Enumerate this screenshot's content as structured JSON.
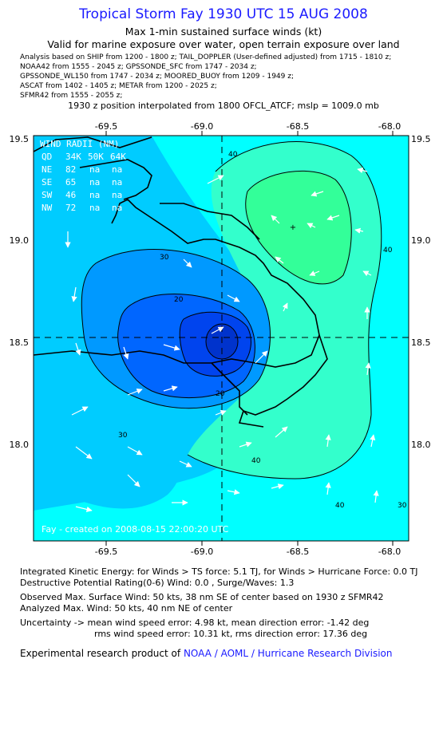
{
  "header": {
    "title": "Tropical Storm Fay 1930 UTC 15 AUG 2008",
    "subtitle1": "Max 1-min sustained surface winds (kt)",
    "subtitle2": "Valid for marine exposure over water, open terrain exposure over land"
  },
  "analysis": {
    "lines": [
      "Analysis based on   SHIP from 1200 - 1800 z;  TAIL_DOPPLER (User-defined adjusted) from 1715 - 1810 z;",
      "NOAA42 from 1555 - 2045 z;  GPSSONDE_SFC from 1747 - 2034 z;",
      "GPSSONDE_WL150 from 1747 - 2034 z;  MOORED_BUOY from 1209 - 1949 z;",
      "ASCAT from 1402 - 1405 z;  METAR from 1200 - 2025 z;",
      "SFMR42 from 1555 - 2055 z;"
    ],
    "interp": "1930 z position interpolated from 1800 OFCL_ATCF; mslp = 1009.0 mb"
  },
  "map": {
    "lon_ticks": [
      "-69.5",
      "-69.0",
      "-68.5",
      "-68.0"
    ],
    "lat_ticks": [
      "19.5",
      "19.0",
      "18.5",
      "18.0"
    ],
    "lon_range": [
      -69.85,
      -67.92
    ],
    "lat_range": [
      17.53,
      19.53
    ],
    "center": {
      "lon": -68.92,
      "lat": 18.52
    },
    "contour_labels": [
      "40",
      "40",
      "30",
      "20",
      "20",
      "30",
      "40",
      "30",
      "40"
    ],
    "colors": {
      "water_light": "#00ffff",
      "mid": "#00ccff",
      "deep": "#0066ff",
      "core": "#0033cc",
      "max": "#33ff99"
    },
    "wind_radii": {
      "title": "WIND RADII (NM)",
      "header": [
        "QD",
        "34K",
        "50K",
        "64K"
      ],
      "rows": [
        [
          "NE",
          "82",
          "na",
          "na"
        ],
        [
          "SE",
          "65",
          "na",
          "na"
        ],
        [
          "SW",
          "46",
          "na",
          "na"
        ],
        [
          "NW",
          "72",
          "na",
          "na"
        ]
      ]
    },
    "credit": "Fay - created on 2008-08-15 22:00:20 UTC"
  },
  "footer": {
    "ike": "Integrated Kinetic Energy:  for Winds > TS force: 5.1 TJ,  for Winds > Hurricane Force: 0.0 TJ",
    "dpr": "Destructive Potential Rating(0-6)   Wind: 0.0 , Surge/Waves: 1.3",
    "obs": "Observed Max. Surface Wind: 50 kts, 38 nm SE of center based on 1930 z SFMR42",
    "analyzed": "Analyzed Max. Wind: 50 kts, 40 nm NE of center",
    "unc1": "Uncertainty -> mean wind speed error: 4.98 kt,   mean direction error:  -1.42 deg",
    "unc2": "rms wind speed error: 10.31 kt,   rms direction error: 17.36 deg",
    "credit_prefix": "Experimental research product of",
    "credit_link": "NOAA / AOML / Hurricane Research Division"
  }
}
